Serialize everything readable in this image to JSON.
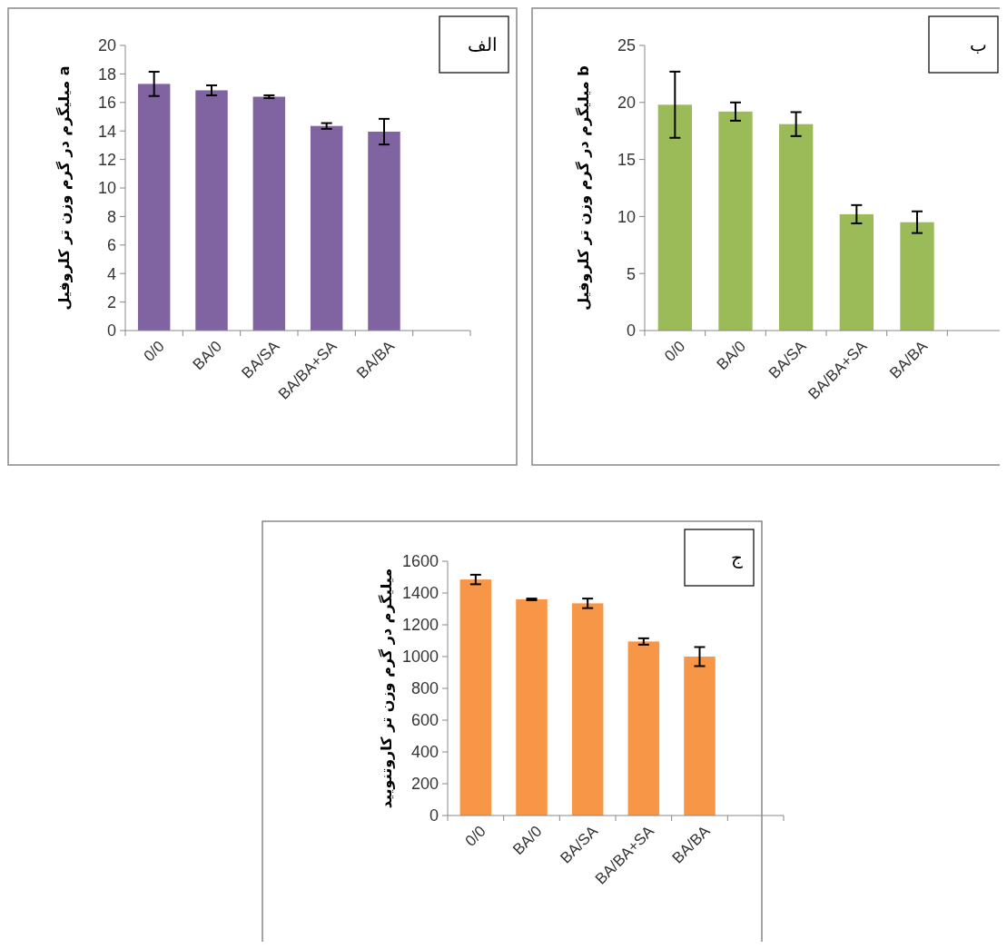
{
  "chart_data": [
    {
      "type": "bar",
      "ylabel": "میلیگرم در گرم وزن تر کلروفیل a",
      "categories": [
        "0/0",
        "BA/0",
        "BA/SA",
        "BA/BA+SA",
        "BA/BA",
        null
      ],
      "values": [
        17.3,
        16.85,
        16.4,
        14.35,
        13.95,
        null
      ],
      "errors": [
        0.85,
        0.35,
        0.1,
        0.2,
        0.9,
        null
      ],
      "color": "#8064a2",
      "ylim": [
        0,
        20
      ],
      "yticks": [
        0,
        2,
        4,
        6,
        8,
        10,
        12,
        14,
        16,
        18,
        20
      ],
      "grid": false,
      "annotations": [
        "الف"
      ]
    },
    {
      "type": "bar",
      "ylabel": "میلیگرم در گرم وزن تر کلروفیل b",
      "categories": [
        "0/0",
        "BA/0",
        "BA/SA",
        "BA/BA+SA",
        "BA/BA",
        null
      ],
      "values": [
        19.8,
        19.2,
        18.1,
        10.2,
        9.5,
        null
      ],
      "errors": [
        2.9,
        0.8,
        1.05,
        0.8,
        0.95,
        null
      ],
      "color": "#9bbb59",
      "ylim": [
        0,
        25
      ],
      "yticks": [
        0,
        5,
        10,
        15,
        20,
        25
      ],
      "grid": false,
      "annotations": [
        "ب"
      ]
    },
    {
      "type": "bar",
      "ylabel": "میلیگرم در گرم وزن تر کاروتنویید",
      "categories": [
        "0/0",
        "BA/0",
        "BA/SA",
        "BA/BA+SA",
        "BA/BA",
        null
      ],
      "values": [
        1485,
        1360,
        1335,
        1095,
        1000,
        null
      ],
      "errors": [
        30,
        5,
        30,
        20,
        60,
        null
      ],
      "color": "#f79646",
      "ylim": [
        0,
        1600
      ],
      "yticks": [
        0,
        200,
        400,
        600,
        800,
        1000,
        1200,
        1400,
        1600
      ],
      "grid": false,
      "annotations": [
        "ج"
      ]
    }
  ]
}
